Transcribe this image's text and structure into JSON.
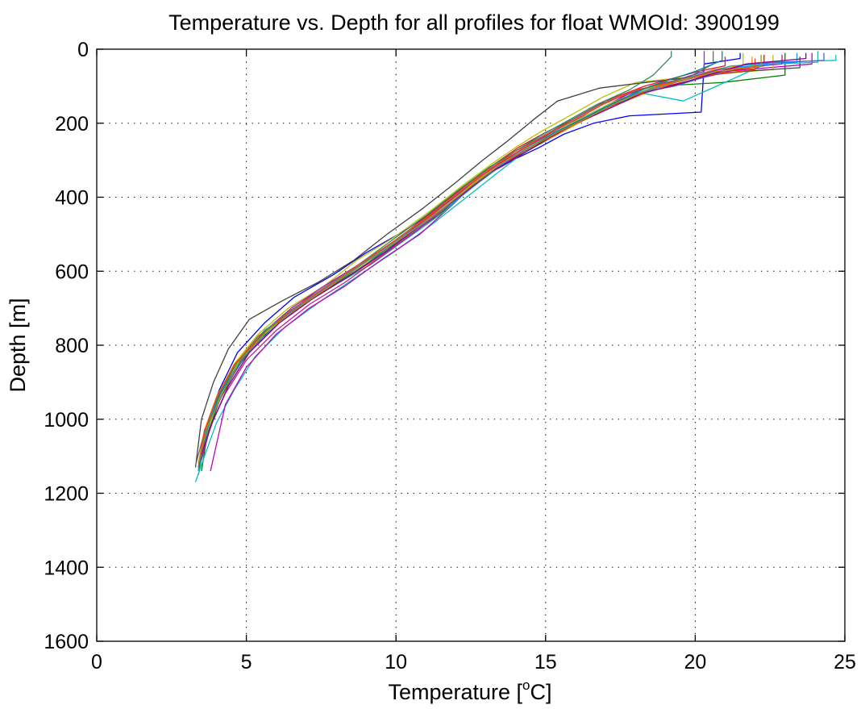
{
  "chart_data": {
    "type": "line",
    "title": "Temperature vs. Depth for all profiles for float WMOId: 3900199",
    "xlabel": {
      "pre": "Temperature [",
      "sup": "o",
      "post": "C]"
    },
    "ylabel": "Depth [m]",
    "xlim": [
      0,
      25
    ],
    "ylim": [
      0,
      1600
    ],
    "y_reversed": true,
    "x_ticks": [
      0,
      5,
      10,
      15,
      20,
      25
    ],
    "y_ticks": [
      0,
      200,
      400,
      600,
      800,
      1000,
      1200,
      1400,
      1600
    ],
    "x_tick_labels": [
      "0",
      "5",
      "10",
      "15",
      "20",
      "25"
    ],
    "y_tick_labels": [
      "0",
      "200",
      "400",
      "600",
      "800",
      "1000",
      "1200",
      "1400",
      "1600"
    ],
    "grid": true,
    "legend": "none",
    "series": [
      {
        "color": "#0000ff",
        "x": [
          21.5,
          21.5,
          20.3,
          20.2,
          17.8,
          16.6,
          15.6,
          14.8,
          13.9,
          12.8,
          11.6,
          10.3,
          9.0,
          7.9,
          6.6,
          5.6,
          4.7,
          4.1,
          3.7,
          3.5,
          3.4
        ],
        "y": [
          10,
          25,
          40,
          170,
          180,
          200,
          230,
          265,
          300,
          350,
          420,
          490,
          550,
          610,
          670,
          740,
          820,
          920,
          1010,
          1090,
          1130
        ]
      },
      {
        "color": "#008000",
        "x": [
          23.0,
          23.0,
          20.9,
          18.7,
          17.5,
          16.3,
          15.4,
          14.5,
          13.6,
          12.6,
          11.4,
          10.1,
          8.9,
          7.7,
          6.5,
          5.5,
          4.7,
          4.1,
          3.7,
          3.5
        ],
        "y": [
          10,
          70,
          90,
          100,
          140,
          190,
          230,
          270,
          310,
          370,
          450,
          520,
          580,
          650,
          710,
          780,
          860,
          950,
          1040,
          1140
        ]
      },
      {
        "color": "#ff0000",
        "x": [
          22.3,
          22.3,
          21.4,
          18.5,
          17.3,
          16.1,
          15.2,
          14.2,
          13.3,
          12.3,
          11.0,
          9.8,
          8.6,
          7.4,
          6.3,
          5.3,
          4.5,
          4.0,
          3.6,
          3.4
        ],
        "y": [
          15,
          45,
          55,
          110,
          150,
          195,
          230,
          270,
          320,
          380,
          460,
          530,
          590,
          650,
          720,
          790,
          870,
          960,
          1050,
          1130
        ]
      },
      {
        "color": "#00bfbf",
        "x": [
          24.7,
          24.7,
          22.5,
          19.6,
          18.3,
          17.2,
          16.0,
          15.0,
          14.1,
          13.3,
          12.2,
          11.1,
          9.9,
          8.6,
          7.5,
          6.3,
          5.3,
          4.6,
          4.0,
          3.6,
          3.3
        ],
        "y": [
          15,
          30,
          35,
          140,
          120,
          150,
          200,
          240,
          290,
          340,
          410,
          480,
          550,
          620,
          680,
          750,
          830,
          920,
          1010,
          1100,
          1170
        ]
      },
      {
        "color": "#bf00bf",
        "x": [
          23.9,
          23.9,
          21.0,
          19.0,
          17.8,
          16.6,
          15.5,
          14.7,
          13.8,
          12.9,
          11.9,
          10.8,
          9.5,
          8.3,
          7.1,
          6.0,
          5.0,
          4.3,
          3.8
        ],
        "y": [
          10,
          40,
          60,
          90,
          120,
          170,
          210,
          250,
          290,
          340,
          420,
          500,
          570,
          640,
          700,
          770,
          860,
          960,
          1140
        ]
      },
      {
        "color": "#bfbf00",
        "x": [
          22.6,
          22.6,
          21.0,
          18.0,
          16.9,
          15.8,
          14.9,
          14.1,
          13.2,
          12.2,
          11.1,
          9.9,
          8.7,
          7.6,
          6.4,
          5.4,
          4.6,
          4.0,
          3.6,
          3.4
        ],
        "y": [
          15,
          55,
          65,
          90,
          130,
          180,
          220,
          260,
          310,
          370,
          440,
          510,
          570,
          640,
          700,
          770,
          850,
          940,
          1030,
          1120
        ]
      },
      {
        "color": "#404040",
        "x": [
          23.5,
          23.5,
          21.6,
          17.8,
          16.8,
          15.4,
          14.6,
          13.7,
          12.9,
          12.0,
          10.9,
          9.7,
          8.6,
          7.4,
          6.2,
          5.1,
          4.4,
          3.9,
          3.5,
          3.3
        ],
        "y": [
          20,
          50,
          60,
          95,
          105,
          140,
          190,
          250,
          300,
          360,
          430,
          500,
          570,
          630,
          680,
          730,
          810,
          900,
          1000,
          1130
        ]
      },
      {
        "color": "#ff8c00",
        "x": [
          21.9,
          21.9,
          20.6,
          18.6,
          17.4,
          16.2,
          15.3,
          14.4,
          13.5,
          12.6,
          11.5,
          10.3,
          9.1,
          7.9,
          6.7,
          5.7,
          4.8,
          4.1,
          3.7,
          3.4
        ],
        "y": [
          20,
          40,
          55,
          110,
          150,
          195,
          235,
          270,
          310,
          360,
          440,
          510,
          580,
          640,
          700,
          760,
          840,
          930,
          1020,
          1140
        ]
      },
      {
        "color": "#8a2be2",
        "x": [
          20.3,
          20.3,
          19.5,
          18.2,
          17.1,
          16.0,
          15.1,
          14.2,
          13.4,
          12.4,
          11.2,
          10.0,
          8.8,
          7.6,
          6.5,
          5.5,
          4.7,
          4.1,
          3.6,
          3.4
        ],
        "y": [
          5,
          60,
          80,
          110,
          140,
          190,
          230,
          270,
          310,
          370,
          450,
          520,
          580,
          640,
          700,
          770,
          850,
          940,
          1030,
          1130
        ]
      },
      {
        "color": "#20b2aa",
        "x": [
          24.1,
          24.1,
          21.2,
          18.9,
          17.7,
          16.5,
          15.5,
          14.6,
          13.7,
          12.7,
          11.6,
          10.4,
          9.2,
          7.9,
          6.7,
          5.6,
          4.8,
          4.1,
          3.7,
          3.4
        ],
        "y": [
          5,
          35,
          45,
          95,
          130,
          180,
          220,
          260,
          300,
          360,
          440,
          510,
          580,
          640,
          700,
          760,
          840,
          930,
          1020,
          1150
        ]
      },
      {
        "color": "#dc143c",
        "x": [
          21.0,
          21.0,
          20.1,
          18.3,
          17.0,
          15.9,
          15.0,
          14.1,
          13.3,
          12.3,
          11.2,
          10.1,
          8.9,
          7.7,
          6.6,
          5.6,
          4.7,
          4.1,
          3.7,
          3.4
        ],
        "y": [
          20,
          45,
          60,
          100,
          140,
          190,
          225,
          265,
          310,
          370,
          440,
          510,
          575,
          640,
          700,
          765,
          845,
          935,
          1025,
          1120
        ]
      },
      {
        "color": "#2e8b57",
        "x": [
          19.2,
          19.2,
          18.6,
          17.8,
          16.7,
          15.7,
          14.8,
          14.0,
          13.1,
          12.1,
          11.0,
          9.8,
          8.7,
          7.5,
          6.4,
          5.4,
          4.6,
          4.0,
          3.6,
          3.4
        ],
        "y": [
          5,
          20,
          70,
          110,
          150,
          195,
          235,
          275,
          320,
          380,
          450,
          520,
          585,
          650,
          710,
          780,
          860,
          950,
          1040,
          1140
        ]
      },
      {
        "color": "#4169e1",
        "x": [
          24.3,
          24.3,
          21.8,
          19.3,
          18.0,
          16.9,
          15.8,
          14.9,
          14.0,
          13.1,
          12.0,
          10.8,
          9.6,
          8.3,
          7.1,
          6.0,
          5.0,
          4.3,
          3.8,
          3.5
        ],
        "y": [
          10,
          30,
          40,
          100,
          120,
          165,
          205,
          245,
          285,
          335,
          410,
          480,
          550,
          620,
          680,
          745,
          825,
          915,
          1005,
          1100
        ]
      },
      {
        "color": "#c71585",
        "x": [
          22.9,
          22.9,
          20.8,
          18.8,
          17.6,
          16.5,
          15.5,
          14.6,
          13.8,
          12.9,
          11.8,
          10.7,
          9.5,
          8.3,
          7.1,
          6.0,
          5.0,
          4.3,
          3.8,
          3.5
        ],
        "y": [
          15,
          40,
          55,
          100,
          135,
          180,
          220,
          260,
          300,
          350,
          420,
          490,
          560,
          630,
          690,
          760,
          840,
          930,
          1020,
          1110
        ]
      },
      {
        "color": "#9acd32",
        "x": [
          21.6,
          21.6,
          20.5,
          18.4,
          17.2,
          16.1,
          15.2,
          14.3,
          13.4,
          12.4,
          11.3,
          10.1,
          8.9,
          7.7,
          6.6,
          5.6,
          4.7,
          4.1,
          3.7,
          3.4
        ],
        "y": [
          10,
          50,
          65,
          105,
          145,
          190,
          230,
          270,
          315,
          375,
          445,
          515,
          580,
          645,
          705,
          770,
          850,
          940,
          1030,
          1130
        ]
      },
      {
        "color": "#696969",
        "x": [
          20.6,
          20.6,
          19.8,
          18.1,
          16.8,
          15.8,
          14.9,
          14.0,
          13.2,
          12.2,
          11.1,
          9.9,
          8.8,
          7.6,
          6.5,
          5.4,
          4.6,
          4.0,
          3.6,
          3.3
        ],
        "y": [
          5,
          40,
          75,
          110,
          150,
          195,
          235,
          275,
          320,
          380,
          450,
          520,
          585,
          650,
          710,
          775,
          855,
          945,
          1035,
          1125
        ]
      },
      {
        "color": "#1e90ff",
        "x": [
          23.4,
          23.4,
          21.3,
          19.1,
          17.9,
          16.7,
          15.7,
          14.8,
          13.9,
          13.0,
          11.9,
          10.6,
          9.3,
          8.1,
          6.9,
          5.8,
          4.9,
          4.2,
          3.7,
          3.4
        ],
        "y": [
          10,
          35,
          50,
          95,
          125,
          170,
          210,
          250,
          290,
          345,
          415,
          485,
          555,
          620,
          685,
          750,
          830,
          920,
          1010,
          1140
        ]
      },
      {
        "color": "#ff4500",
        "x": [
          22.0,
          22.0,
          20.4,
          18.0,
          16.9,
          15.9,
          15.0,
          14.2,
          13.3,
          12.3,
          11.2,
          10.0,
          8.8,
          7.6,
          6.5,
          5.5,
          4.6,
          4.0,
          3.6,
          3.4
        ],
        "y": [
          25,
          55,
          70,
          110,
          150,
          195,
          232,
          270,
          315,
          375,
          445,
          515,
          580,
          645,
          705,
          772,
          852,
          942,
          1032,
          1128
        ]
      },
      {
        "color": "#008b8b",
        "x": [
          20.9,
          20.9,
          20.0,
          18.5,
          17.4,
          16.3,
          15.3,
          14.5,
          13.6,
          12.6,
          11.5,
          10.3,
          9.1,
          7.9,
          6.7,
          5.6,
          4.8,
          4.1,
          3.7,
          3.4
        ],
        "y": [
          5,
          30,
          60,
          100,
          140,
          185,
          225,
          265,
          305,
          365,
          435,
          505,
          575,
          640,
          700,
          765,
          845,
          935,
          1025,
          1135
        ]
      },
      {
        "color": "#8b008b",
        "x": [
          23.7,
          23.7,
          21.7,
          19.4,
          18.2,
          17.0,
          15.9,
          15.0,
          14.2,
          13.2,
          12.1,
          10.9,
          9.7,
          8.4,
          7.2,
          6.1,
          5.1,
          4.4,
          3.9,
          3.5
        ],
        "y": [
          10,
          25,
          40,
          95,
          120,
          165,
          205,
          245,
          285,
          330,
          400,
          470,
          545,
          615,
          675,
          740,
          820,
          910,
          1000,
          1095
        ]
      },
      {
        "color": "#b8860b",
        "x": [
          22.2,
          22.2,
          20.7,
          18.6,
          17.5,
          16.4,
          15.4,
          14.5,
          13.6,
          12.6,
          11.5,
          10.3,
          9.1,
          7.9,
          6.8,
          5.7,
          4.8,
          4.2,
          3.7,
          3.4
        ],
        "y": [
          15,
          45,
          60,
          105,
          140,
          185,
          225,
          265,
          305,
          365,
          435,
          505,
          570,
          635,
          695,
          760,
          840,
          930,
          1020,
          1120
        ]
      }
    ]
  }
}
